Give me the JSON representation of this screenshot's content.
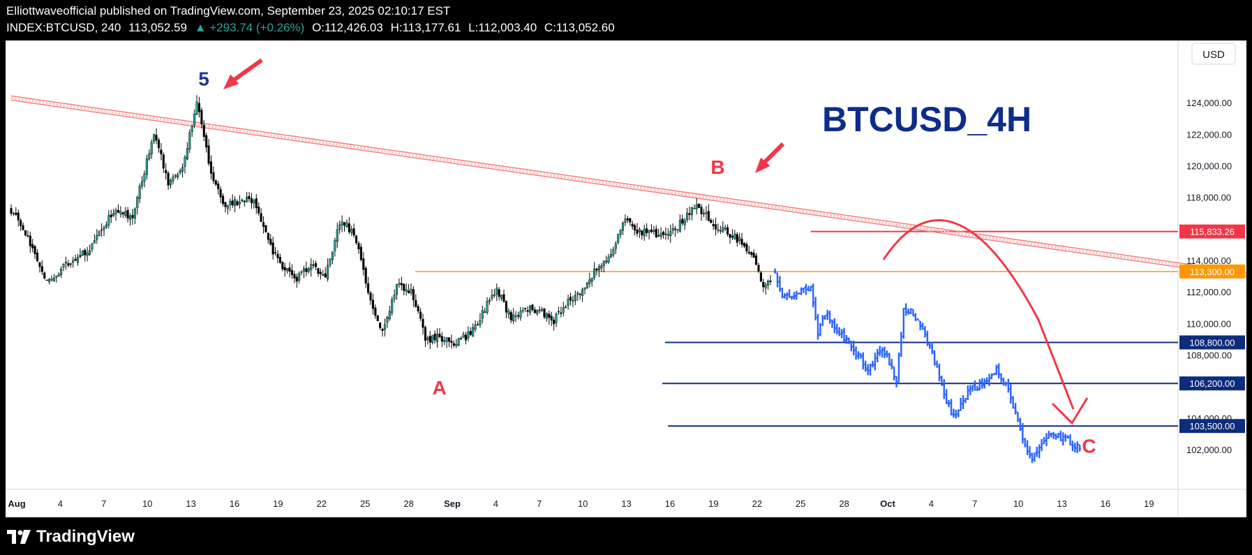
{
  "header": {
    "publish_line": "Elliottwaveofficial published on TradingView.com, September 23, 2025 02:10:17 EST",
    "symbol": "INDEX:BTCUSD, 240",
    "price": "113,052.59",
    "change": "▲ +293.74 (+0.26%)",
    "open": "O:112,426.03",
    "high": "H:113,177.61",
    "low": "L:112,003.40",
    "close": "C:113,052.60"
  },
  "footer": {
    "brand": "TradingView",
    "logo_icon": "tradingview-logo-icon"
  },
  "chart_data": {
    "type": "candlestick",
    "title": "BTCUSD_4H",
    "currency": "USD",
    "x_tick_labels": [
      "Aug",
      "4",
      "7",
      "10",
      "13",
      "16",
      "19",
      "22",
      "25",
      "28",
      "Sep",
      "4",
      "7",
      "10",
      "13",
      "16",
      "19",
      "22",
      "25",
      "28",
      "Oct",
      "4",
      "7",
      "10",
      "13",
      "16",
      "19"
    ],
    "y_tick_labels": [
      "124,000.00",
      "122,000.00",
      "120,000.00",
      "118,000.00",
      "116,000.00",
      "114,000.00",
      "112,000.00",
      "110,000.00",
      "108,000.00",
      "106,000.00",
      "104,000.00",
      "102,000.00"
    ],
    "ylim": [
      100500,
      125200
    ],
    "historical_path": [
      [
        0,
        117200
      ],
      [
        1.5,
        114800
      ],
      [
        2.5,
        112600
      ],
      [
        4,
        113900
      ],
      [
        5.5,
        114600
      ],
      [
        7,
        117000
      ],
      [
        8.5,
        116800
      ],
      [
        10,
        122000
      ],
      [
        11,
        119000
      ],
      [
        12,
        119800
      ],
      [
        13,
        124000
      ],
      [
        14,
        119500
      ],
      [
        15,
        117400
      ],
      [
        16,
        117800
      ],
      [
        17,
        117900
      ],
      [
        18,
        115200
      ],
      [
        19,
        113500
      ],
      [
        20,
        112900
      ],
      [
        21,
        113600
      ],
      [
        22,
        113000
      ],
      [
        23,
        116500
      ],
      [
        24,
        115800
      ],
      [
        25,
        112000
      ],
      [
        26,
        109300
      ],
      [
        27,
        112400
      ],
      [
        28,
        112000
      ],
      [
        28.6,
        110600
      ],
      [
        29,
        108900
      ],
      [
        30,
        109200
      ],
      [
        31,
        108600
      ],
      [
        32,
        109300
      ],
      [
        33,
        110600
      ],
      [
        34,
        112300
      ],
      [
        35,
        110300
      ],
      [
        36,
        111000
      ],
      [
        37,
        110800
      ],
      [
        38,
        110200
      ],
      [
        39,
        111400
      ],
      [
        40,
        112100
      ],
      [
        41,
        113500
      ],
      [
        42,
        114500
      ],
      [
        43,
        116500
      ],
      [
        44,
        115800
      ],
      [
        45,
        115700
      ],
      [
        46,
        115500
      ],
      [
        47,
        116500
      ],
      [
        48,
        117600
      ],
      [
        49,
        116400
      ],
      [
        50,
        115800
      ],
      [
        51,
        115300
      ],
      [
        52,
        114300
      ],
      [
        52.6,
        112300
      ],
      [
        53.2,
        112600
      ]
    ],
    "projection_path": [
      [
        53.5,
        113300
      ],
      [
        54,
        111600
      ],
      [
        55,
        112000
      ],
      [
        56,
        112200
      ],
      [
        56.5,
        109500
      ],
      [
        57,
        110700
      ],
      [
        58,
        109400
      ],
      [
        59,
        108400
      ],
      [
        60,
        107200
      ],
      [
        61,
        108500
      ],
      [
        62,
        106400
      ],
      [
        62.5,
        110900
      ],
      [
        63,
        110800
      ],
      [
        64,
        109300
      ],
      [
        64.5,
        108300
      ],
      [
        65,
        106400
      ],
      [
        66,
        104000
      ],
      [
        66.5,
        105000
      ],
      [
        67,
        105600
      ],
      [
        68,
        106200
      ],
      [
        69,
        107200
      ],
      [
        70,
        105400
      ],
      [
        70.5,
        103800
      ],
      [
        71,
        102000
      ],
      [
        71.5,
        101500
      ],
      [
        72,
        102200
      ],
      [
        73,
        103000
      ],
      [
        74,
        102600
      ],
      [
        75,
        102100
      ]
    ],
    "levels": [
      {
        "label": "115,833.26",
        "value": 115833.26,
        "color": "#f23645"
      },
      {
        "label": "113,300.00",
        "value": 113300,
        "color": "#ff9800"
      },
      {
        "label": "108,800.00",
        "value": 108800,
        "color": "#0d2c7c"
      },
      {
        "label": "106,200.00",
        "value": 106200,
        "color": "#0d2c7c"
      },
      {
        "label": "103,500.00",
        "value": 103500,
        "color": "#0d2c7c"
      }
    ],
    "trendline": {
      "start": [
        0,
        124300
      ],
      "end": [
        95,
        112000
      ],
      "color": "#f08080"
    },
    "wave_labels": [
      {
        "text": "5",
        "color": "#1a3a9c",
        "x": 13,
        "y": 125100
      },
      {
        "text": "A",
        "color": "#f23645",
        "x": 29.5,
        "y": 105500
      },
      {
        "text": "B",
        "color": "#f23645",
        "x": 49,
        "y": 119500
      },
      {
        "text": "C",
        "color": "#f23645",
        "x": 75,
        "y": 101800
      }
    ],
    "colors": {
      "up": "#26a69a",
      "down": "#000000",
      "candle": "#000000",
      "projection": "#2962ff",
      "annotation": "#f23645"
    }
  }
}
